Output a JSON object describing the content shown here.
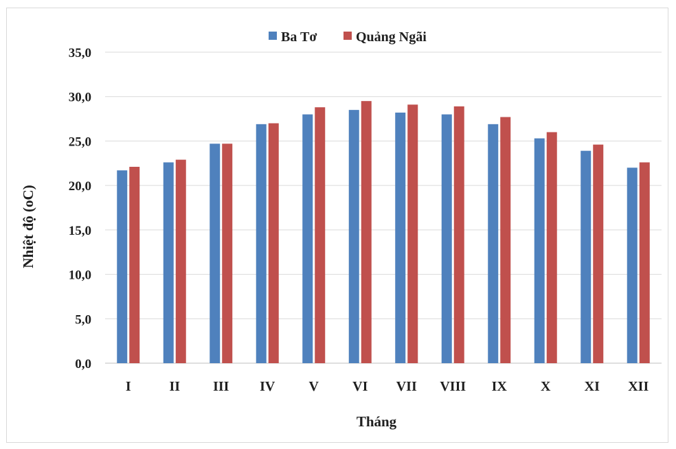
{
  "chart_data": {
    "type": "bar",
    "xlabel": "Tháng",
    "ylabel": "Nhiệt độ (oC)",
    "ylim": [
      0,
      35
    ],
    "yticks": [
      "0,0",
      "5,0",
      "10,0",
      "15,0",
      "20,0",
      "25,0",
      "30,0",
      "35,0"
    ],
    "categories": [
      "I",
      "II",
      "III",
      "IV",
      "V",
      "VI",
      "VII",
      "VIII",
      "IX",
      "X",
      "XI",
      "XII"
    ],
    "series": [
      {
        "name": "Ba Tơ",
        "color": "#4f81bd",
        "values": [
          21.7,
          22.6,
          24.7,
          26.9,
          28.0,
          28.5,
          28.2,
          28.0,
          26.9,
          25.3,
          23.9,
          22.0
        ]
      },
      {
        "name": "Quảng Ngãi",
        "color": "#c0504d",
        "values": [
          22.1,
          22.9,
          24.7,
          27.0,
          28.8,
          29.5,
          29.1,
          28.9,
          27.7,
          26.0,
          24.6,
          22.6
        ]
      }
    ],
    "grid": true,
    "legend_position": "top-center"
  }
}
